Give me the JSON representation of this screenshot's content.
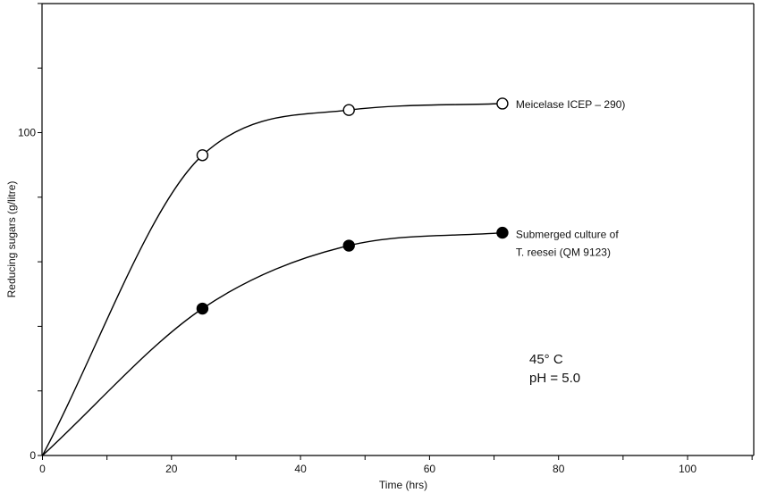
{
  "chart_data": {
    "type": "line",
    "title": "",
    "xlabel": "Time (hrs)",
    "ylabel": "Reducing sugars (g/litre)",
    "xlim": [
      0,
      110
    ],
    "ylim": [
      0,
      140
    ],
    "x_ticks_labeled": [
      "0",
      "20",
      "40",
      "60",
      "80",
      "100"
    ],
    "y_ticks_labeled": [
      "0",
      "100"
    ],
    "grid": false,
    "series": [
      {
        "name": "Meicelase ICEP – 290)",
        "marker": "open-circle",
        "color": "#000000",
        "x": [
          0,
          24.8,
          47.5,
          71.3
        ],
        "y": [
          0,
          93,
          107,
          109
        ]
      },
      {
        "name": "Submerged culture of T. reesei (QM 9123)",
        "label_lines": [
          "Submerged culture of",
          "T. reesei (QM 9123)"
        ],
        "marker": "filled-circle",
        "color": "#000000",
        "x": [
          0,
          24.8,
          47.5,
          71.3
        ],
        "y": [
          0,
          45.5,
          65,
          69
        ]
      }
    ],
    "annotations": [
      "45° C",
      "pH = 5.0"
    ]
  }
}
